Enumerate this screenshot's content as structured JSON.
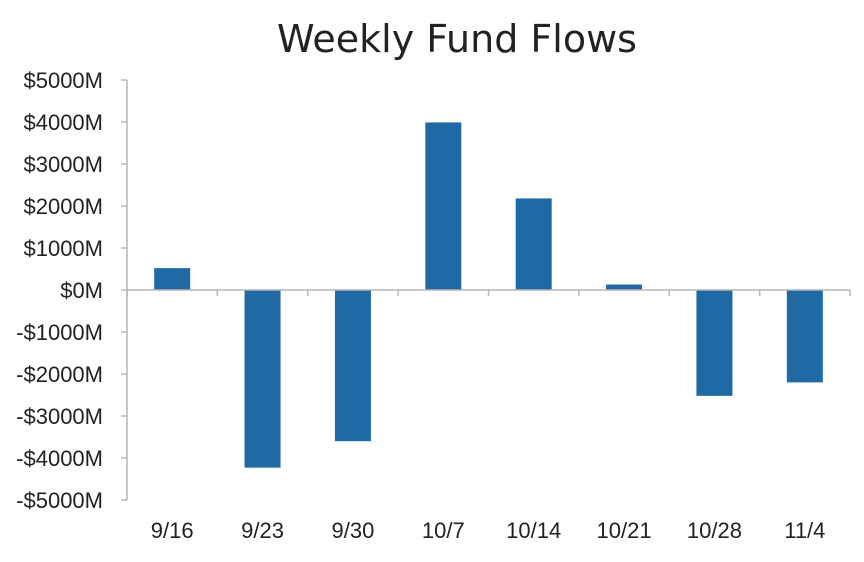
{
  "chart_data": {
    "type": "bar",
    "title": "Weekly Fund Flows",
    "xlabel": "",
    "ylabel": "",
    "categories": [
      "9/16",
      "9/23",
      "9/30",
      "10/7",
      "10/14",
      "10/21",
      "10/28",
      "11/4"
    ],
    "values": [
      520,
      -4230,
      -3600,
      3990,
      2180,
      130,
      -2520,
      -2200
    ],
    "ylim": [
      -5000,
      5000
    ],
    "yticks": [
      5000,
      4000,
      3000,
      2000,
      1000,
      0,
      -1000,
      -2000,
      -3000,
      -4000,
      -5000
    ],
    "ytick_labels": [
      "$5000M",
      "$4000M",
      "$3000M",
      "$2000M",
      "$1000M",
      "$0M",
      "-$1000M",
      "-$2000M",
      "-$3000M",
      "-$4000M",
      "-$5000M"
    ],
    "grid": false,
    "legend": "none",
    "bar_color": "#1f69a4"
  }
}
